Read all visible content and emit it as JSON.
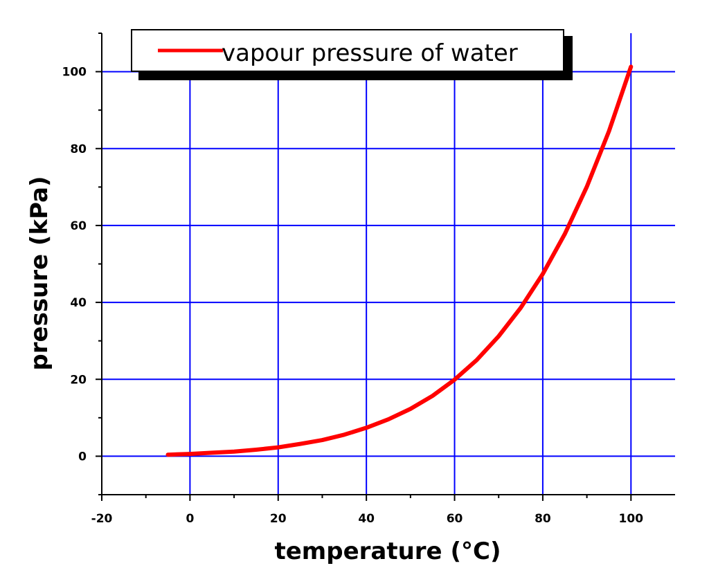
{
  "chart_data": {
    "type": "line",
    "xlabel": "temperature (°C)",
    "ylabel": "pressure (kPa)",
    "xlim": [
      -20,
      110
    ],
    "ylim": [
      -10,
      110
    ],
    "x_ticks": [
      -20,
      0,
      20,
      40,
      60,
      80,
      100
    ],
    "y_ticks": [
      0,
      20,
      40,
      60,
      80,
      100
    ],
    "grid": true,
    "legend_position": "top",
    "series": [
      {
        "name": "vapour pressure of water",
        "color": "#ff0000",
        "x": [
          -5,
          0,
          5,
          10,
          15,
          20,
          25,
          30,
          35,
          40,
          45,
          50,
          55,
          60,
          65,
          70,
          75,
          80,
          85,
          90,
          95,
          100
        ],
        "y": [
          0.4,
          0.6,
          0.9,
          1.2,
          1.7,
          2.3,
          3.2,
          4.2,
          5.6,
          7.4,
          9.6,
          12.3,
          15.7,
          19.9,
          25.0,
          31.2,
          38.6,
          47.4,
          57.8,
          70.1,
          84.5,
          101.3
        ]
      }
    ],
    "colors": {
      "grid": "#0000ff",
      "axis": "#000000",
      "background": "#ffffff"
    }
  }
}
